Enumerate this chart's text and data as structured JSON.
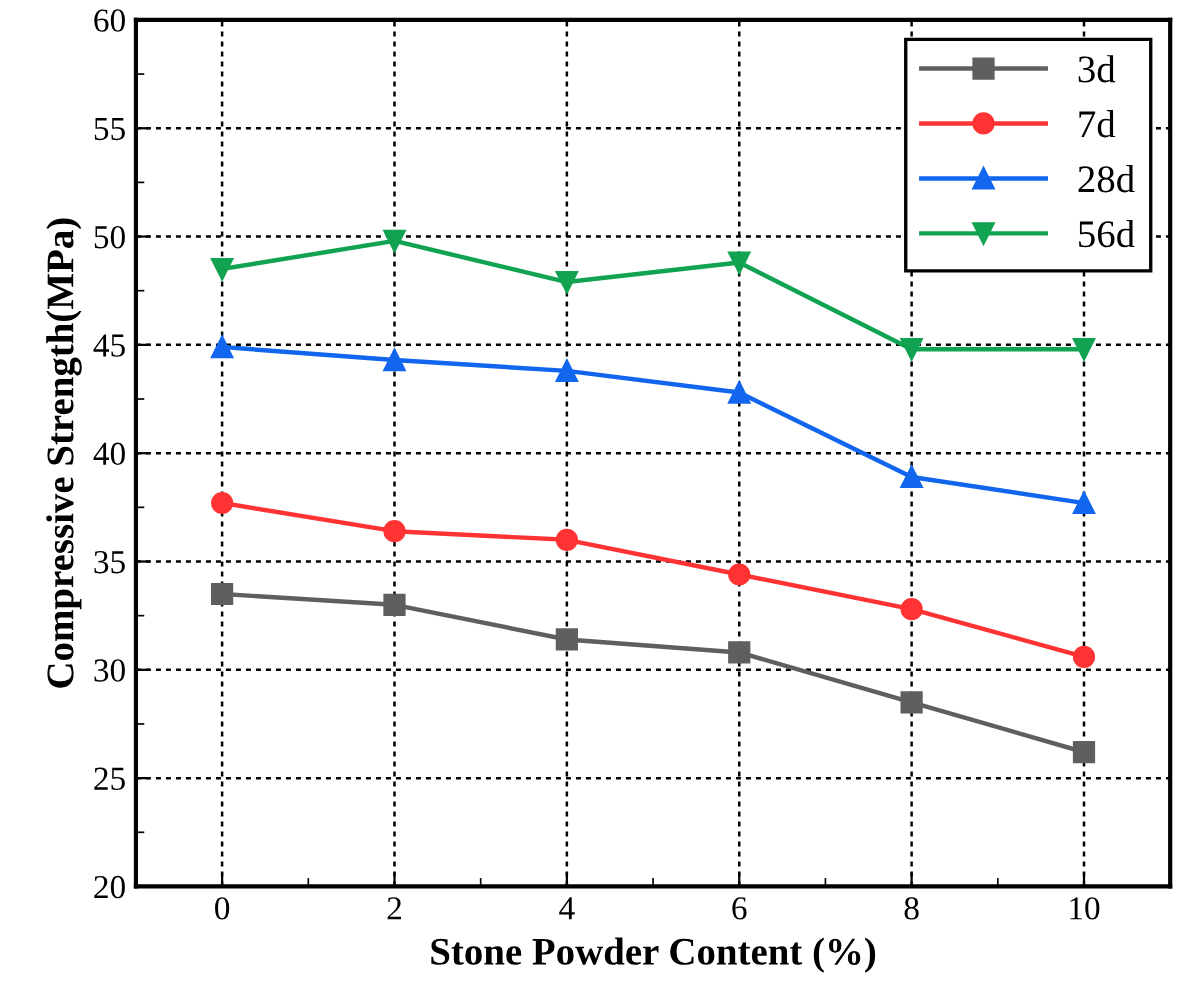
{
  "chart_data": {
    "type": "line",
    "xlabel": "Stone Powder Content (%)",
    "ylabel": "Compressive Strength(MPa)",
    "x": [
      0,
      2,
      4,
      6,
      8,
      10
    ],
    "series": [
      {
        "name": "3d",
        "color": "#5f5f5f",
        "marker": "square",
        "values": [
          33.5,
          33.0,
          31.4,
          30.8,
          28.5,
          26.2
        ]
      },
      {
        "name": "7d",
        "color": "#ff3333",
        "marker": "circle",
        "values": [
          37.7,
          36.4,
          36.0,
          34.4,
          32.8,
          30.6
        ]
      },
      {
        "name": "28d",
        "color": "#1266ee",
        "marker": "triangle",
        "values": [
          44.9,
          44.3,
          43.8,
          42.8,
          38.9,
          37.7
        ]
      },
      {
        "name": "56d",
        "color": "#11a352",
        "marker": "triangle_down",
        "values": [
          48.5,
          49.8,
          47.9,
          48.8,
          44.8,
          44.8
        ]
      }
    ],
    "xlim": [
      -1,
      11
    ],
    "xticks": [
      0,
      2,
      4,
      6,
      8,
      10
    ],
    "ylim": [
      20,
      60
    ],
    "yticks": [
      20,
      25,
      30,
      35,
      40,
      45,
      50,
      55,
      60
    ],
    "grid": true,
    "legend": "top right",
    "line_style": "solid"
  }
}
